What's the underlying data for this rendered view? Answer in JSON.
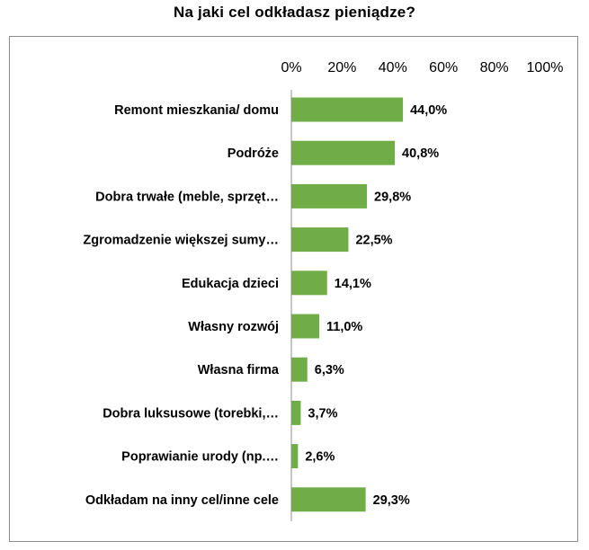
{
  "chart_data": {
    "type": "bar",
    "orientation": "horizontal",
    "title": "Na jaki cel odkładasz pieniądze?",
    "categories": [
      "Remont mieszkania/ domu",
      "Podróże",
      "Dobra trwałe (meble, sprzęt…",
      "Zgromadzenie większej sumy…",
      "Edukacja dzieci",
      "Własny rozwój",
      "Własna firma",
      "Dobra luksusowe (torebki,…",
      "Poprawianie urody (np.…",
      "Odkładam na inny cel/inne cele"
    ],
    "values": [
      44.0,
      40.8,
      29.8,
      22.5,
      14.1,
      11.0,
      6.3,
      3.7,
      2.6,
      29.3
    ],
    "data_labels": [
      "44,0%",
      "40,8%",
      "29,8%",
      "22,5%",
      "14,1%",
      "11,0%",
      "6,3%",
      "3,7%",
      "2,6%",
      "29,3%"
    ],
    "xlim": [
      0,
      100
    ],
    "xticks": [
      0,
      20,
      40,
      60,
      80,
      100
    ],
    "xtick_labels": [
      "0%",
      "20%",
      "40%",
      "60%",
      "80%",
      "100%"
    ],
    "x_axis_position": "top",
    "grid": false,
    "legend": "none",
    "bar_color": "#70AD47"
  }
}
